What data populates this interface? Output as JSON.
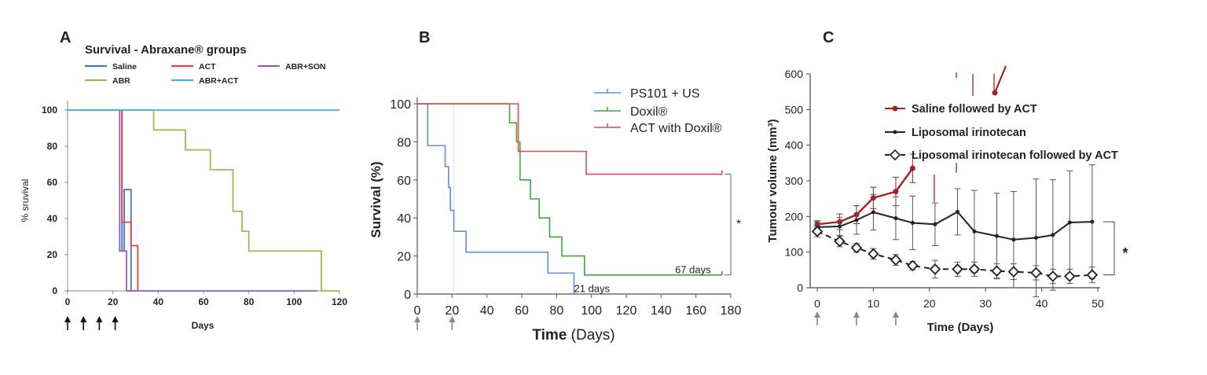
{
  "chart_data": [
    {
      "panel": "A",
      "type": "line",
      "subtype": "kaplan-meier",
      "title": "Survival - Abraxane® groups",
      "xlabel": "Days",
      "ylabel": "% sruvival",
      "xlim": [
        0,
        120
      ],
      "ylim": [
        0,
        100
      ],
      "xticks": [
        0,
        20,
        40,
        60,
        80,
        100,
        120
      ],
      "yticks": [
        0,
        20,
        40,
        60,
        80,
        100
      ],
      "legend_position": "top",
      "treatment_arrow_days": [
        0,
        7,
        14,
        21
      ],
      "series": [
        {
          "name": "Saline",
          "color": "#4472c4",
          "x": [
            0,
            24,
            24,
            25,
            25,
            28,
            28,
            30
          ],
          "y": [
            100,
            100,
            22,
            22,
            56,
            56,
            0,
            0
          ]
        },
        {
          "name": "ACT",
          "color": "#e0443e",
          "x": [
            0,
            24,
            24,
            28,
            28,
            31,
            31
          ],
          "y": [
            100,
            100,
            38,
            38,
            25,
            25,
            0
          ]
        },
        {
          "name": "ABR+SON",
          "color": "#8e5fb6",
          "x": [
            0,
            23,
            23,
            26,
            26,
            110
          ],
          "y": [
            100,
            100,
            22,
            22,
            0,
            0
          ]
        },
        {
          "name": "ABR",
          "color": "#92c050",
          "x": [
            0,
            38,
            38,
            52,
            52,
            63,
            63,
            73,
            73,
            77,
            77,
            80,
            80,
            112,
            112,
            120
          ],
          "y": [
            100,
            100,
            89,
            89,
            78,
            78,
            67,
            67,
            44,
            44,
            33,
            33,
            22,
            22,
            0,
            0
          ]
        },
        {
          "name": "ABR+ACT",
          "color": "#3fb5d8",
          "x": [
            0,
            120
          ],
          "y": [
            100,
            100
          ]
        }
      ]
    },
    {
      "panel": "B",
      "type": "line",
      "subtype": "kaplan-meier",
      "xlabel_bold": "Time",
      "xlabel_rest": "(Days)",
      "ylabel": "Survival (%)",
      "xlim": [
        0,
        180
      ],
      "ylim": [
        0,
        100
      ],
      "xticks": [
        0,
        20,
        40,
        60,
        80,
        100,
        120,
        140,
        160,
        180
      ],
      "yticks": [
        0,
        20,
        40,
        60,
        80,
        100
      ],
      "legend_position": "top-right",
      "treatment_arrow_days": [
        0,
        20
      ],
      "significance": "*",
      "annotations": [
        {
          "text": "67 days",
          "color": "#3cab3c",
          "x": 148,
          "y": 11
        },
        {
          "text": "21 days",
          "color": "#5b8fd6",
          "x": 90,
          "y": 1
        }
      ],
      "series": [
        {
          "name": "PS101 + US",
          "color": "#5b8fd6",
          "x": [
            0,
            6,
            6,
            16,
            16,
            18,
            18,
            19,
            19,
            21,
            21,
            28,
            28,
            75,
            75,
            80,
            80,
            90,
            90
          ],
          "y": [
            100,
            100,
            78,
            78,
            67,
            67,
            56,
            56,
            44,
            44,
            33,
            33,
            22,
            22,
            11,
            11,
            11,
            11,
            0
          ]
        },
        {
          "name": "Doxil®",
          "color": "#3cab3c",
          "x": [
            0,
            53,
            53,
            57,
            57,
            59,
            59,
            65,
            65,
            70,
            70,
            76,
            76,
            83,
            83,
            96,
            96,
            175
          ],
          "y": [
            100,
            100,
            90,
            90,
            80,
            80,
            60,
            60,
            50,
            50,
            40,
            40,
            30,
            30,
            20,
            20,
            10,
            10
          ]
        },
        {
          "name": "ACT with Doxil®",
          "color": "#e5484d",
          "x": [
            0,
            58,
            58,
            97,
            97,
            175
          ],
          "y": [
            100,
            100,
            75,
            75,
            63,
            63
          ]
        }
      ]
    },
    {
      "panel": "C",
      "type": "line",
      "xlabel": "Time (Days)",
      "ylabel": "Tumour volume (mm³)",
      "xlim": [
        0,
        50
      ],
      "ylim": [
        0,
        600
      ],
      "xticks": [
        0,
        10,
        20,
        30,
        40,
        50
      ],
      "yticks": [
        0,
        100,
        200,
        300,
        400,
        500,
        600
      ],
      "legend_position": "top-right",
      "treatment_arrow_days": [
        0,
        7,
        14
      ],
      "significance": "*",
      "series": [
        {
          "name": "Saline followed by ACT",
          "color": "#a32024",
          "x": [
            0,
            4,
            7,
            10,
            14,
            17
          ],
          "y": [
            178,
            185,
            205,
            252,
            270,
            335
          ],
          "err": [
            10,
            22,
            25,
            30,
            40,
            40
          ]
        },
        {
          "name": "Liposomal irinotecan",
          "color": "#222222",
          "x": [
            0,
            4,
            7,
            10,
            14,
            17,
            21,
            25,
            28,
            32,
            35,
            39,
            42,
            45,
            49
          ],
          "y": [
            170,
            172,
            190,
            212,
            195,
            182,
            178,
            213,
            158,
            145,
            135,
            140,
            148,
            183,
            185
          ],
          "err": [
            15,
            25,
            40,
            50,
            60,
            75,
            60,
            65,
            115,
            120,
            135,
            165,
            155,
            145,
            160
          ]
        },
        {
          "name": "Liposomal irinotecan followed by ACT",
          "color": "#222222",
          "x": [
            0,
            4,
            7,
            10,
            14,
            17,
            21,
            25,
            28,
            32,
            35,
            39,
            42,
            45,
            49
          ],
          "y": [
            158,
            130,
            112,
            95,
            78,
            62,
            52,
            52,
            52,
            47,
            45,
            42,
            32,
            32,
            36
          ],
          "err": [
            15,
            15,
            12,
            15,
            15,
            12,
            25,
            20,
            20,
            20,
            22,
            20,
            20,
            20,
            22
          ]
        }
      ]
    }
  ]
}
